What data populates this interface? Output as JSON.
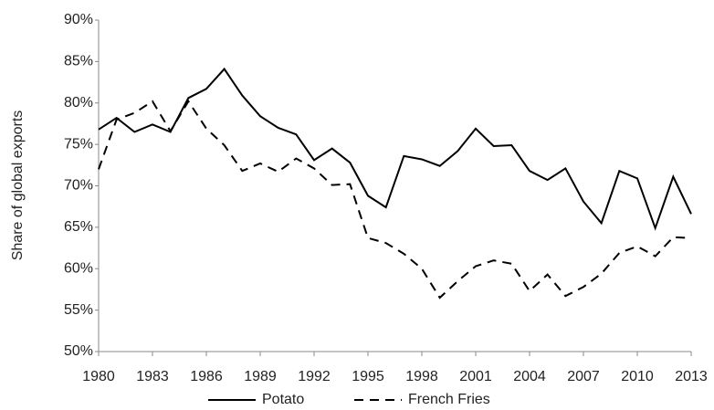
{
  "chart_data": {
    "type": "line",
    "y_label": "Share of global exports",
    "x": [
      1980,
      1981,
      1982,
      1983,
      1984,
      1985,
      1986,
      1987,
      1988,
      1989,
      1990,
      1991,
      1992,
      1993,
      1994,
      1995,
      1996,
      1997,
      1998,
      1999,
      2000,
      2001,
      2002,
      2003,
      2004,
      2005,
      2006,
      2007,
      2008,
      2009,
      2010,
      2011,
      2012,
      2013
    ],
    "series": [
      {
        "name": "Potato",
        "color": "#000000",
        "dash": "solid",
        "values": [
          76.8,
          78.2,
          76.5,
          77.4,
          76.5,
          80.6,
          81.7,
          84.1,
          80.9,
          78.4,
          77.0,
          76.2,
          73.1,
          74.5,
          72.8,
          68.8,
          67.4,
          73.6,
          73.2,
          72.4,
          74.2,
          76.9,
          74.8,
          74.9,
          71.8,
          70.7,
          72.1,
          68.1,
          65.5,
          71.8,
          70.9,
          64.9,
          71.1,
          66.6
        ]
      },
      {
        "name": "French Fries",
        "color": "#000000",
        "dash": "dashed",
        "values": [
          72.0,
          78.0,
          78.8,
          80.2,
          76.6,
          80.2,
          76.9,
          74.9,
          71.8,
          72.7,
          71.7,
          73.3,
          72.1,
          70.1,
          70.2,
          63.7,
          63.1,
          61.8,
          60.0,
          56.5,
          58.5,
          60.3,
          61.0,
          60.6,
          57.3,
          59.3,
          56.7,
          57.8,
          59.4,
          61.9,
          62.7,
          61.5,
          63.8,
          63.7
        ]
      }
    ],
    "xlim": [
      1980,
      2013
    ],
    "xticks": [
      1980,
      1983,
      1986,
      1989,
      1992,
      1995,
      1998,
      2001,
      2004,
      2007,
      2010,
      2013
    ],
    "ylim": [
      50,
      90
    ],
    "yticks": [
      {
        "value": 50,
        "label": "50%"
      },
      {
        "value": 55,
        "label": "55%"
      },
      {
        "value": 60,
        "label": "60%"
      },
      {
        "value": 65,
        "label": "65%"
      },
      {
        "value": 70,
        "label": "70%"
      },
      {
        "value": 75,
        "label": "75%"
      },
      {
        "value": 80,
        "label": "80%"
      },
      {
        "value": 85,
        "label": "85%"
      },
      {
        "value": 90,
        "label": "90%"
      }
    ],
    "grid": false,
    "legend": "bottom"
  }
}
